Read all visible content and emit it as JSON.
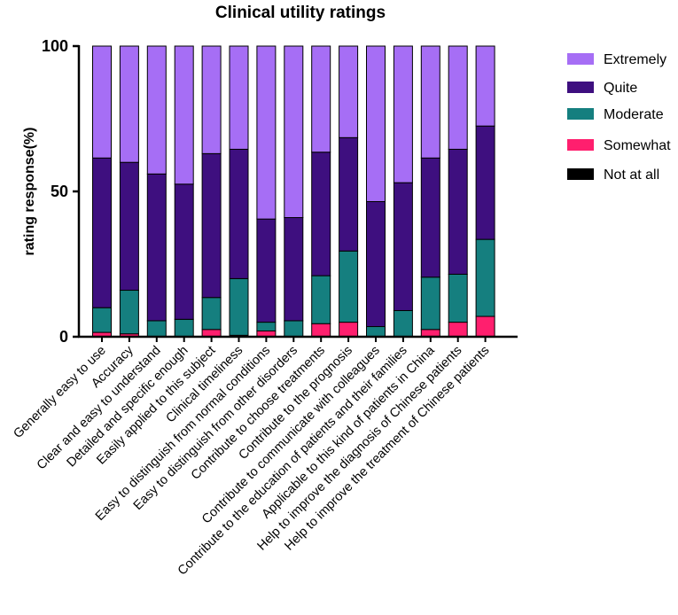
{
  "chart_data": {
    "type": "bar",
    "stacked": true,
    "title": "Clinical utility ratings",
    "xlabel": "",
    "ylabel": "rating response(%)",
    "ylim": [
      0,
      100
    ],
    "yticks": [
      "0",
      "50",
      "100"
    ],
    "legend_position": "right",
    "categories": [
      "Generally easy to use",
      "Accuracy",
      "Clear and easy to understand",
      "Detailed and specific enough",
      "Easily applied to this subject",
      "Clinical timeliness",
      "Easy to distinguish from normal conditions",
      "Easy to distinguish from other disorders",
      "Contribute to choose treatments",
      "Contribute to the prognosis",
      "Contribute to communicate with colleagues",
      "Contribute to the education of patients and their families",
      "Applicable to this kind of patients in China",
      "Help to improve the diagnosis of Chinese patients",
      "Help to improve the treatment of Chinese patients"
    ],
    "series": [
      {
        "name": "Not at all",
        "color": "#000000",
        "values": [
          0,
          0,
          0,
          0,
          0,
          0,
          0,
          0,
          0,
          0,
          0,
          0,
          0,
          0,
          0
        ]
      },
      {
        "name": "Somewhat",
        "color": "#ff1f6e",
        "values": [
          1.5,
          1,
          0,
          0,
          2.5,
          0.5,
          2,
          0,
          4.5,
          5,
          0,
          0,
          2.5,
          5,
          7
        ]
      },
      {
        "name": "Moderate",
        "color": "#157f7f",
        "values": [
          8.5,
          15,
          5.5,
          6,
          11,
          19.5,
          3,
          5.5,
          16.5,
          24.5,
          3.5,
          9,
          18,
          16.5,
          26.5
        ]
      },
      {
        "name": "Quite",
        "color": "#3e0f7f",
        "values": [
          51.5,
          44,
          50.5,
          46.5,
          49.5,
          44.5,
          35.5,
          35.5,
          42.5,
          39,
          43,
          44,
          41,
          43,
          39
        ]
      },
      {
        "name": "Extremely",
        "color": "#a66ef5",
        "values": [
          38.5,
          40,
          44,
          47.5,
          37,
          35.5,
          59.5,
          59,
          36.5,
          31.5,
          53.5,
          47,
          38.5,
          35.5,
          27.5
        ]
      }
    ],
    "legend_order": [
      "Extremely",
      "Quite",
      "Moderate",
      "Somewhat",
      "Not at all"
    ]
  }
}
